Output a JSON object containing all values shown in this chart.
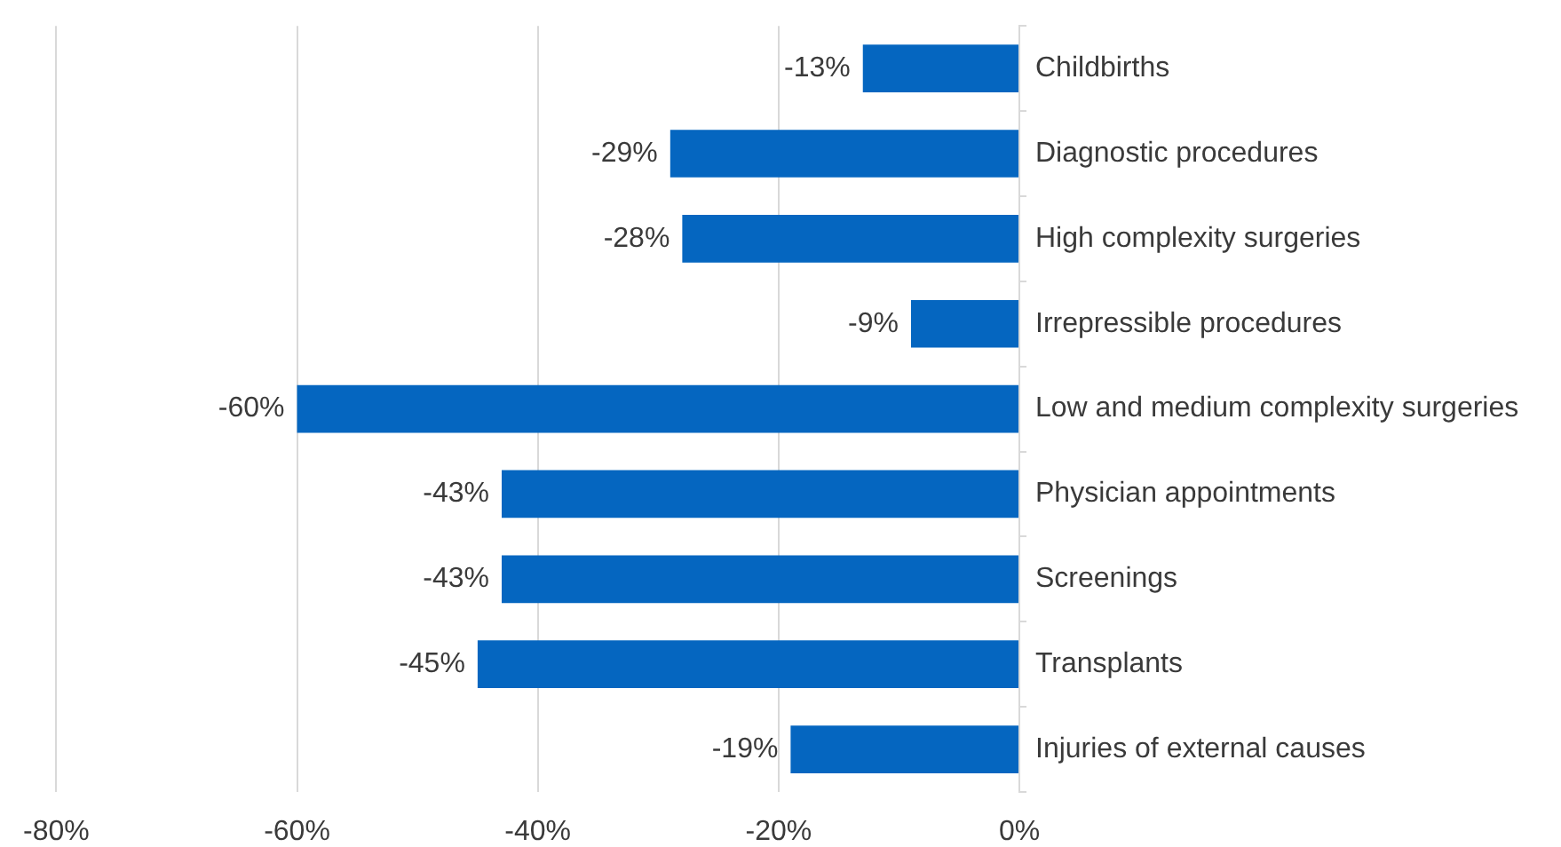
{
  "chart_data": {
    "type": "bar",
    "orientation": "horizontal",
    "categories": [
      "Childbirths",
      "Diagnostic procedures",
      "High complexity surgeries",
      "Irrepressible procedures",
      "Low and medium complexity surgeries",
      "Physician appointments",
      "Screenings",
      "Transplants",
      "Injuries of external causes"
    ],
    "values": [
      -13,
      -29,
      -28,
      -9,
      -60,
      -43,
      -43,
      -45,
      -19
    ],
    "color": "#0566c0",
    "value_labels": [
      "-13%",
      "-29%",
      "-28%",
      "-9%",
      "-60%",
      "-43%",
      "-43%",
      "-45%",
      "-19%"
    ],
    "xlim": [
      -80,
      0
    ],
    "xticks": [
      {
        "value": -80,
        "label": "-80%"
      },
      {
        "value": -60,
        "label": "-60%"
      },
      {
        "value": -40,
        "label": "-40%"
      },
      {
        "value": -20,
        "label": "-20%"
      },
      {
        "value": 0,
        "label": "0%"
      }
    ],
    "grid": "x"
  }
}
